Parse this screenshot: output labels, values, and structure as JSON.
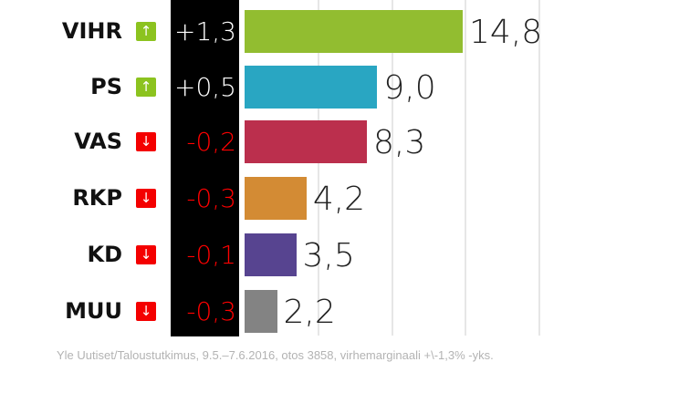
{
  "chart_data": {
    "type": "bar",
    "orientation": "horizontal",
    "title": "",
    "xlabel": "",
    "ylabel": "",
    "categories": [
      "VIHR",
      "PS",
      "VAS",
      "RKP",
      "KD",
      "MUU"
    ],
    "values": [
      14.8,
      9.0,
      8.3,
      4.2,
      3.5,
      2.2
    ],
    "value_labels": [
      "14,8",
      "9,0",
      "8,3",
      "4,2",
      "3,5",
      "2,2"
    ],
    "changes": [
      1.3,
      0.5,
      -0.2,
      -0.3,
      -0.1,
      -0.3
    ],
    "change_labels": [
      "+1,3",
      "+0,5",
      "-0,2",
      "-0,3",
      "-0,1",
      "-0,3"
    ],
    "change_direction": [
      "up",
      "up",
      "down",
      "down",
      "down",
      "down"
    ],
    "colors": [
      "#92bd30",
      "#29a6c2",
      "#bb2f4d",
      "#d38b34",
      "#574490",
      "#838383"
    ],
    "gridlines": [
      5,
      10,
      15,
      20
    ],
    "xlim": [
      0,
      21
    ],
    "grid": true,
    "legend": null
  },
  "rows": [
    {
      "party": "VIHR",
      "change": "+1,3",
      "dir": "up",
      "arrow": "↑",
      "value": "14,8"
    },
    {
      "party": "PS",
      "change": "+0,5",
      "dir": "up",
      "arrow": "↑",
      "value": "9,0"
    },
    {
      "party": "VAS",
      "change": "-0,2",
      "dir": "down",
      "arrow": "↓",
      "value": "8,3"
    },
    {
      "party": "RKP",
      "change": "-0,3",
      "dir": "down",
      "arrow": "↓",
      "value": "4,2"
    },
    {
      "party": "KD",
      "change": "-0,1",
      "dir": "down",
      "arrow": "↓",
      "value": "3,5"
    },
    {
      "party": "MUU",
      "change": "-0,3",
      "dir": "down",
      "arrow": "↓",
      "value": "2,2"
    }
  ],
  "source": "Yle Uutiset/Taloustutkimus, 9.5.–7.6.2016, otos 3858, virhemarginaali +\\-1,3% -yks."
}
